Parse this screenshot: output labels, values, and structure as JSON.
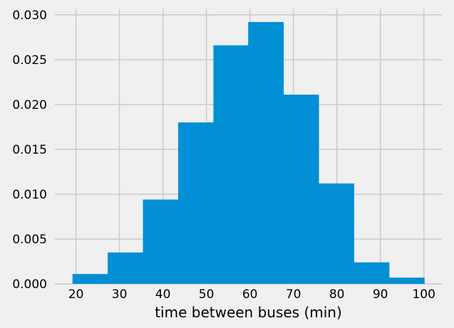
{
  "chart_data": {
    "type": "bar",
    "style": "histogram",
    "title": "",
    "xlabel": "time between buses (min)",
    "ylabel": "",
    "bin_edges": [
      19.2,
      27.3,
      35.4,
      43.5,
      51.6,
      59.6,
      67.7,
      75.8,
      83.9,
      92.0,
      100.1
    ],
    "values": [
      0.0011,
      0.0035,
      0.0094,
      0.018,
      0.0266,
      0.0292,
      0.0211,
      0.0112,
      0.0024,
      0.0007
    ],
    "xlim": [
      15.15,
      104.15
    ],
    "ylim": [
      0,
      0.0307
    ],
    "x_ticks": [
      20,
      30,
      40,
      50,
      60,
      70,
      80,
      90,
      100
    ],
    "y_ticks": [
      0.0,
      0.005,
      0.01,
      0.015,
      0.02,
      0.025,
      0.03
    ],
    "y_tick_labels": [
      "0.000",
      "0.005",
      "0.010",
      "0.015",
      "0.020",
      "0.025",
      "0.030"
    ],
    "grid": true,
    "colors": {
      "bar": "#008fd5",
      "background": "#f0f0f0",
      "grid": "#cbcbcb"
    }
  }
}
